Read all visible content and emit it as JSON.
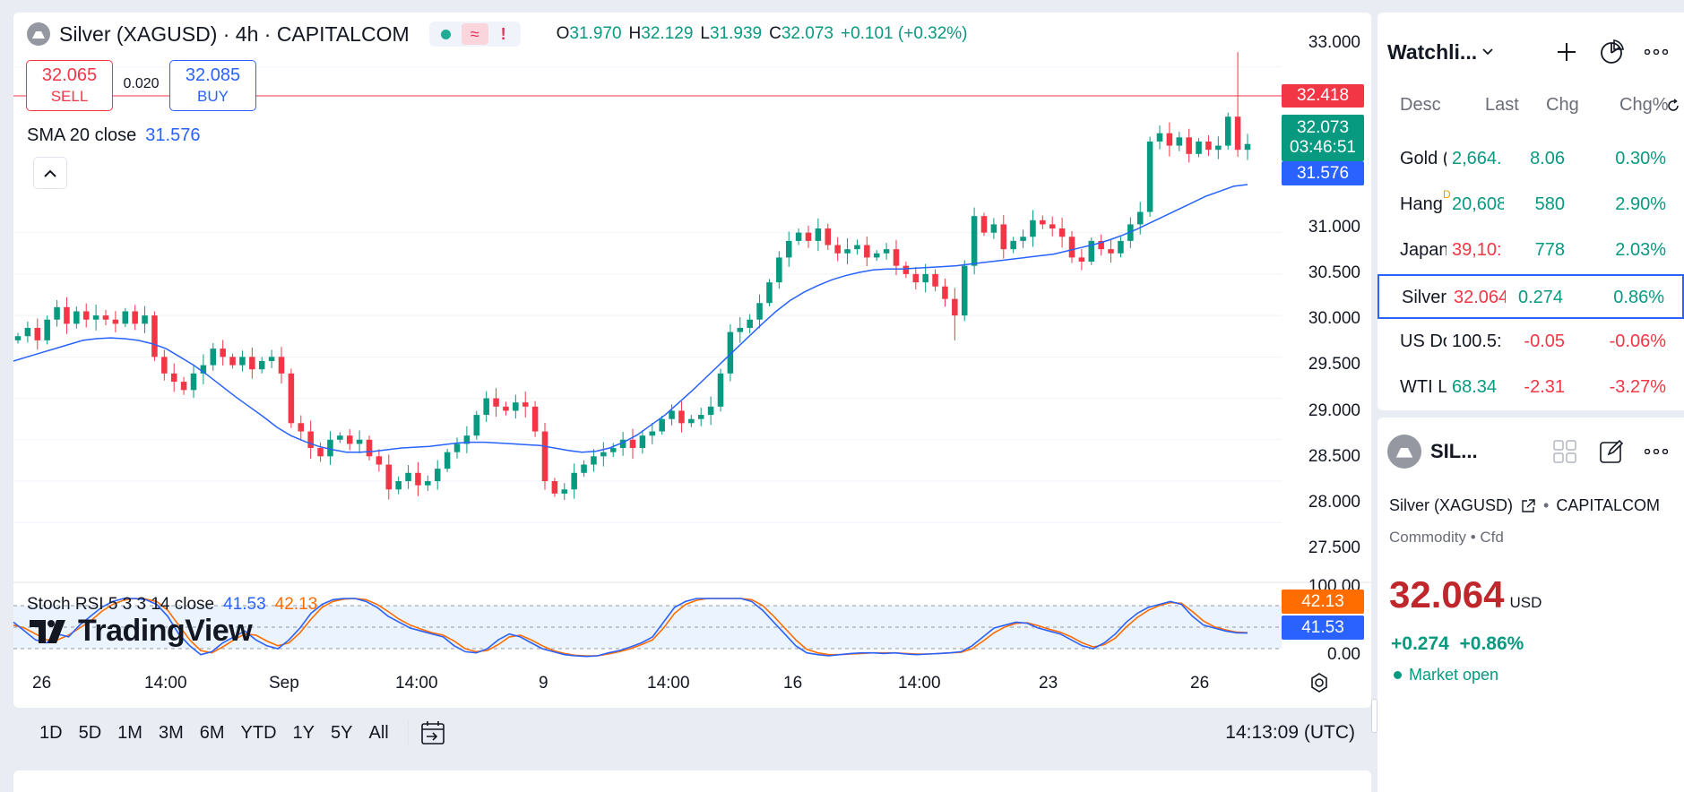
{
  "colors": {
    "up": "#089981",
    "down": "#f23645",
    "sma": "#2962ff",
    "rsi_k": "#2962ff",
    "rsi_d": "#ff6d00"
  },
  "legend": {
    "title": "Silver (XAGUSD) · 4h · CAPITALCOM",
    "ohlc": {
      "o_label": "O",
      "o": "31.970",
      "h_label": "H",
      "h": "32.129",
      "l_label": "L",
      "l": "31.939",
      "c_label": "C",
      "c": "32.073",
      "chg": "+0.101 (+0.32%)"
    }
  },
  "trade": {
    "sell_price": "32.065",
    "sell_label": "SELL",
    "spread": "0.020",
    "buy_price": "32.085",
    "buy_label": "BUY"
  },
  "sma_legend": {
    "label": "SMA 20 close",
    "value": "31.576"
  },
  "price_axis": [
    "33.000",
    "31.000",
    "30.500",
    "30.000",
    "29.500",
    "29.000",
    "28.500",
    "28.000",
    "27.500"
  ],
  "price_tags": {
    "alert": "32.418",
    "last": "32.073",
    "countdown": "03:46:51",
    "sma": "31.576"
  },
  "rsi": {
    "legend": "Stoch RSI 5 3 3 14 close",
    "k": "41.53",
    "d": "42.13",
    "axis_top": "100.00",
    "axis_bottom": "0.00",
    "tag_d": "42.13",
    "tag_k": "41.53"
  },
  "brand": "TradingView",
  "time_axis": [
    "26",
    "14:00",
    "Sep",
    "14:00",
    "9",
    "14:00",
    "16",
    "14:00",
    "23",
    "26"
  ],
  "ranges": [
    "1D",
    "5D",
    "1M",
    "3M",
    "6M",
    "YTD",
    "1Y",
    "5Y",
    "All"
  ],
  "clock": "14:13:09 (UTC)",
  "watchlist": {
    "title": "Watchli...",
    "columns": {
      "desc": "Desc",
      "last": "Last",
      "chg": "Chg",
      "chgp": "Chg%"
    },
    "rows": [
      {
        "name": "Gold (",
        "last": "2,664.",
        "chg": "8.06",
        "chgp": "0.30%",
        "dir": "pos",
        "last_dir": "pos"
      },
      {
        "name": "Hang",
        "badge": "D",
        "last": "20,608",
        "chg": "580",
        "chgp": "2.90%",
        "dir": "pos",
        "last_dir": "pos"
      },
      {
        "name": "Japan",
        "last": "39,10:",
        "chg": "778",
        "chgp": "2.03%",
        "dir": "pos",
        "last_dir": "neg"
      },
      {
        "name": "Silver",
        "last": "32.064",
        "chg": "0.274",
        "chgp": "0.86%",
        "dir": "pos",
        "last_dir": "neg",
        "active": true
      },
      {
        "name": "US Dol",
        "last": "100.5:",
        "chg": "-0.05",
        "chgp": "-0.06%",
        "dir": "neg",
        "last_dir": "plain"
      },
      {
        "name": "WTI Li",
        "last": "68.34",
        "chg": "-2.31",
        "chgp": "-3.27%",
        "dir": "neg",
        "last_dir": "pos"
      }
    ]
  },
  "details": {
    "short": "SIL...",
    "full_name": "Silver (XAGUSD)",
    "exchange": "CAPITALCOM",
    "type": "Commodity",
    "subtype": "Cfd",
    "price": "32.064",
    "currency": "USD",
    "change": "+0.274",
    "change_pct": "+0.86%",
    "market_status": "Market open"
  },
  "chart_data": {
    "type": "candlestick",
    "title": "Silver (XAGUSD) · 4h · CAPITALCOM",
    "ylim": [
      27.2,
      33.3
    ],
    "x_ticks": [
      "26",
      "14:00",
      "Sep",
      "14:00",
      "9",
      "14:00",
      "16",
      "14:00",
      "23",
      "26"
    ],
    "y_ticks": [
      27.5,
      28.0,
      28.5,
      29.0,
      29.5,
      30.0,
      30.5,
      31.0,
      33.0
    ],
    "close": [
      29.75,
      29.85,
      29.7,
      29.95,
      30.1,
      29.9,
      30.05,
      29.95,
      30.0,
      29.95,
      29.9,
      30.05,
      29.9,
      30.0,
      29.5,
      29.3,
      29.2,
      29.1,
      29.3,
      29.4,
      29.6,
      29.5,
      29.4,
      29.5,
      29.35,
      29.45,
      29.5,
      29.3,
      28.7,
      28.6,
      28.4,
      28.3,
      28.5,
      28.55,
      28.45,
      28.5,
      28.3,
      28.2,
      27.9,
      28.0,
      28.1,
      27.95,
      28.0,
      28.15,
      28.35,
      28.45,
      28.55,
      28.8,
      29.0,
      28.9,
      28.85,
      28.95,
      28.9,
      28.6,
      28.0,
      27.85,
      27.9,
      28.1,
      28.2,
      28.3,
      28.35,
      28.4,
      28.5,
      28.4,
      28.55,
      28.6,
      28.75,
      28.85,
      28.7,
      28.75,
      28.8,
      28.9,
      29.3,
      29.8,
      29.85,
      29.95,
      30.15,
      30.4,
      30.7,
      30.9,
      31.0,
      30.9,
      31.05,
      30.85,
      30.75,
      30.8,
      30.85,
      30.7,
      30.75,
      30.8,
      30.6,
      30.5,
      30.4,
      30.5,
      30.35,
      30.2,
      30.0,
      30.6,
      31.2,
      31.0,
      31.1,
      30.8,
      30.9,
      30.95,
      31.15,
      31.1,
      31.05,
      30.95,
      30.7,
      30.65,
      30.9,
      30.8,
      30.75,
      30.9,
      31.1,
      31.25,
      32.1,
      32.2,
      32.05,
      32.15,
      31.95,
      32.1,
      32.0,
      32.05,
      32.4,
      32.0,
      32.07
    ],
    "sma20": [
      29.45,
      29.5,
      29.55,
      29.6,
      29.65,
      29.7,
      29.72,
      29.73,
      29.72,
      29.7,
      29.66,
      29.6,
      29.5,
      29.4,
      29.28,
      29.15,
      29.02,
      28.9,
      28.78,
      28.65,
      28.55,
      28.48,
      28.42,
      28.38,
      28.35,
      28.35,
      28.36,
      28.38,
      28.4,
      28.41,
      28.42,
      28.44,
      28.46,
      28.47,
      28.47,
      28.46,
      28.45,
      28.44,
      28.43,
      28.4,
      28.37,
      28.35,
      28.36,
      28.4,
      28.47,
      28.56,
      28.68,
      28.8,
      28.95,
      29.1,
      29.26,
      29.42,
      29.58,
      29.74,
      29.9,
      30.05,
      30.18,
      30.28,
      30.36,
      30.43,
      30.48,
      30.52,
      30.55,
      30.56,
      30.56,
      30.57,
      30.58,
      30.59,
      30.6,
      30.62,
      30.64,
      30.66,
      30.68,
      30.7,
      30.72,
      30.74,
      30.78,
      30.82,
      30.86,
      30.91,
      30.97,
      31.04,
      31.12,
      31.2,
      31.28,
      31.36,
      31.44,
      31.5,
      31.56,
      31.58
    ],
    "stoch_k": [
      60,
      45,
      30,
      25,
      40,
      35,
      55,
      70,
      85,
      95,
      100,
      100,
      98,
      90,
      70,
      40,
      20,
      5,
      10,
      25,
      35,
      45,
      30,
      20,
      15,
      30,
      50,
      75,
      90,
      98,
      100,
      100,
      95,
      85,
      70,
      60,
      50,
      45,
      40,
      35,
      20,
      10,
      8,
      15,
      30,
      40,
      35,
      25,
      15,
      10,
      5,
      3,
      2,
      3,
      8,
      12,
      18,
      25,
      35,
      60,
      85,
      95,
      100,
      100,
      100,
      100,
      100,
      95,
      80,
      60,
      40,
      20,
      8,
      5,
      3,
      5,
      7,
      8,
      8,
      7,
      8,
      6,
      5,
      6,
      7,
      8,
      10,
      20,
      35,
      50,
      55,
      60,
      58,
      50,
      45,
      40,
      30,
      20,
      15,
      25,
      40,
      60,
      75,
      85,
      90,
      95,
      90,
      70,
      55,
      50,
      45,
      42,
      41.53
    ],
    "stoch_d": [
      55,
      50,
      40,
      30,
      30,
      38,
      50,
      62,
      78,
      90,
      97,
      100,
      99,
      95,
      80,
      55,
      30,
      12,
      8,
      18,
      30,
      40,
      38,
      28,
      20,
      25,
      42,
      65,
      85,
      95,
      99,
      100,
      98,
      90,
      78,
      65,
      55,
      48,
      42,
      38,
      28,
      15,
      10,
      12,
      22,
      35,
      38,
      30,
      20,
      12,
      7,
      4,
      3,
      3,
      6,
      10,
      15,
      22,
      30,
      50,
      75,
      90,
      97,
      100,
      100,
      100,
      100,
      98,
      88,
      70,
      50,
      30,
      14,
      8,
      5,
      5,
      6,
      7,
      8,
      8,
      8,
      7,
      6,
      6,
      7,
      8,
      9,
      15,
      28,
      42,
      52,
      58,
      59,
      54,
      48,
      43,
      35,
      25,
      18,
      22,
      33,
      52,
      68,
      80,
      88,
      93,
      92,
      78,
      62,
      52,
      47,
      43,
      42.13
    ]
  }
}
